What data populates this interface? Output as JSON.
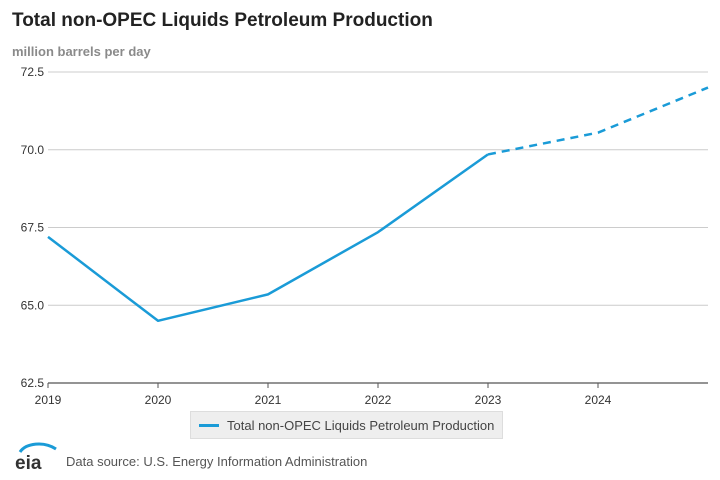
{
  "chart_data": {
    "type": "line",
    "title": "Total non-OPEC Liquids Petroleum Production",
    "ylabel": "million barrels per day",
    "xlabel": "",
    "xlim": [
      2019,
      2025
    ],
    "ylim": [
      62.5,
      72.5
    ],
    "x_ticks": [
      "2019",
      "2020",
      "2021",
      "2022",
      "2023",
      "2024"
    ],
    "y_ticks": [
      "72.5",
      "70.0",
      "67.5",
      "65.0",
      "62.5"
    ],
    "grid": "horizontal",
    "legend_position": "bottom",
    "series": [
      {
        "name": "Total non-OPEC Liquids Petroleum Production",
        "color": "#1a9bd7",
        "historical": {
          "x": [
            2019,
            2020,
            2021,
            2022,
            2023
          ],
          "y": [
            67.2,
            64.5,
            65.35,
            67.35,
            69.85
          ]
        },
        "forecast": {
          "style": "dashed",
          "x": [
            2023,
            2024,
            2025
          ],
          "y": [
            69.85,
            70.55,
            72.0
          ]
        }
      }
    ],
    "source": "Data source: U.S. Energy Information Administration",
    "logo_text": "eia"
  }
}
